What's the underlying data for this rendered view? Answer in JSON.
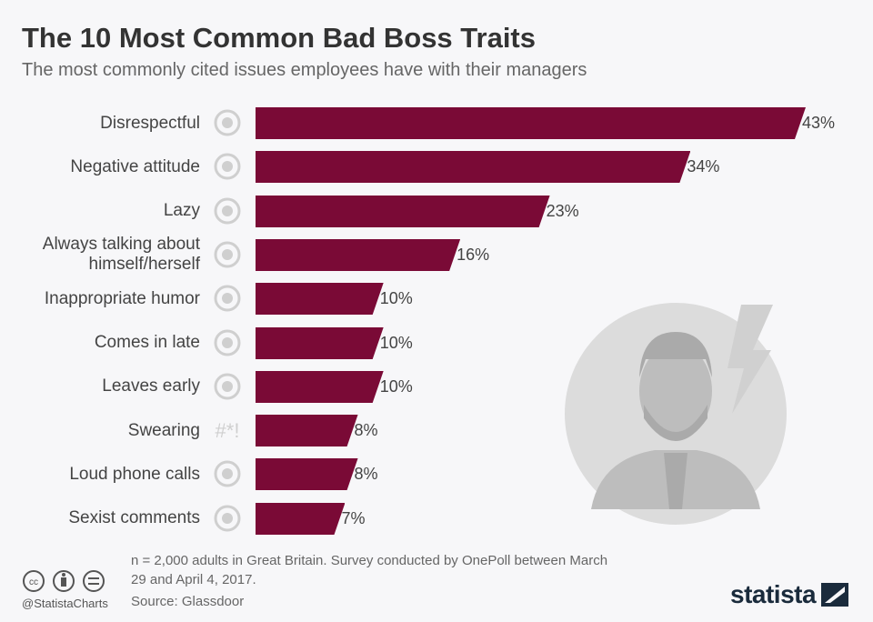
{
  "title": "The 10 Most Common Bad Boss Traits",
  "subtitle": "The most commonly cited issues employees have with their managers",
  "colors": {
    "bar": "#7a0a36",
    "icon": "#cfcfcf"
  },
  "chart_data": {
    "type": "bar",
    "orientation": "horizontal",
    "categories": [
      "Disrespectful",
      "Negative attitude",
      "Lazy",
      "Always talking about himself/herself",
      "Inappropriate humor",
      "Comes in late",
      "Leaves early",
      "Swearing",
      "Loud phone calls",
      "Sexist comments"
    ],
    "values": [
      43,
      34,
      23,
      16,
      10,
      10,
      10,
      8,
      8,
      7
    ],
    "value_labels": [
      "43%",
      "34%",
      "23%",
      "16%",
      "10%",
      "10%",
      "10%",
      "8%",
      "8%",
      "7%"
    ],
    "icons": [
      "speech-bubble-icon",
      "thumbs-down-icon",
      "sleeping-desk-icon",
      "heart-bubble-icon",
      "laugh-cross-icon",
      "clock-late-icon",
      "clock-sun-icon",
      "hash-symbols-icon",
      "phone-icon",
      "gender-icon"
    ],
    "icon_glyphs": [
      "",
      "",
      "",
      "",
      "",
      "",
      "",
      "#*!",
      "",
      ""
    ],
    "xlim": [
      0,
      43
    ]
  },
  "footer": {
    "note": "n = 2,000 adults in Great Britain. Survey conducted by OnePoll between March 29 and April 4, 2017.",
    "source": "Source: Glassdoor",
    "handle": "@StatistaCharts",
    "brand": "statista"
  }
}
